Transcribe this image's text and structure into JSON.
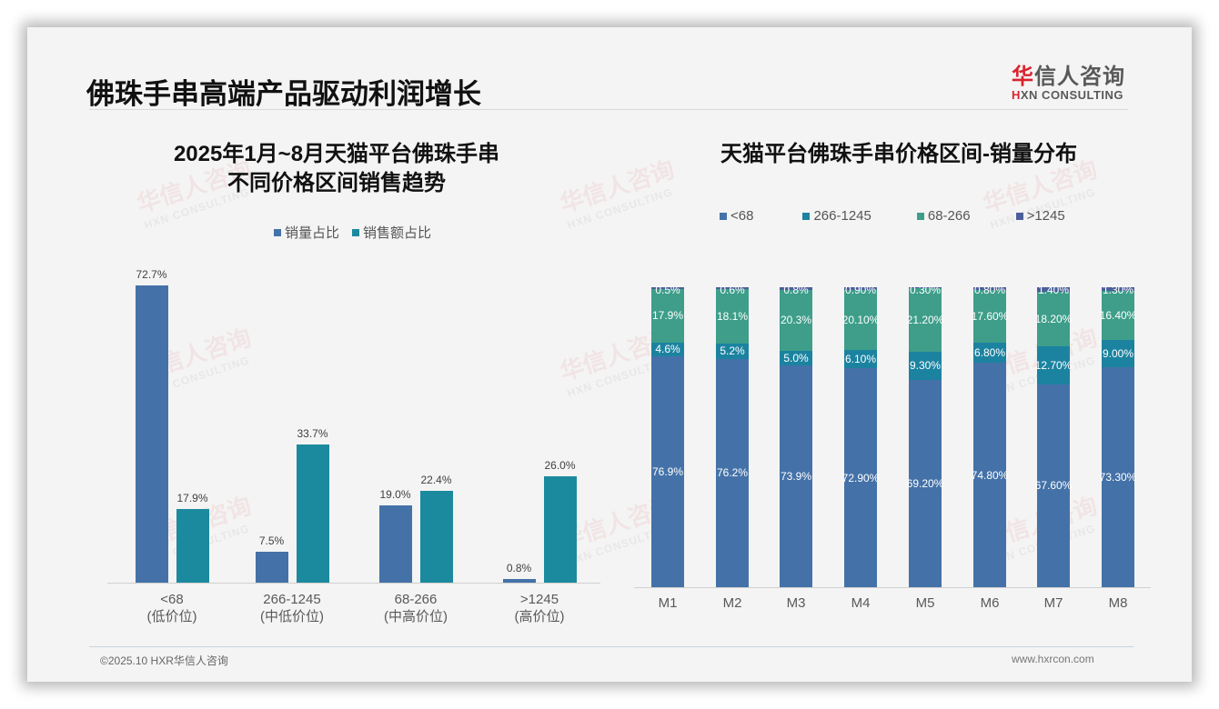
{
  "page": {
    "title": "佛珠手串高端产品驱动利润增长",
    "logo_cn_red": "华",
    "logo_cn_rest": "信人咨询",
    "logo_en_red": "H",
    "logo_en_rest": "XN CONSULTING",
    "watermark_cn": "华信人咨询",
    "watermark_en": "HXN CONSULTING"
  },
  "footer": {
    "copyright": "©2025.10 HXR华信人咨询",
    "website": "www.hxrcon.com"
  },
  "colors": {
    "sales_volume": "#4472a8",
    "sales_amount": "#1b8a9e",
    "lt68": "#4472a8",
    "r266_1245": "#1b83a0",
    "r68_266": "#3e9e8a",
    "gt1245": "#4a5f9a"
  },
  "chart_data": [
    {
      "type": "bar",
      "title_line1": "2025年1月~8月天猫平台佛珠手串",
      "title_line2": "不同价格区间销售趋势",
      "xlabel": "",
      "ylabel": "",
      "legend_position": "top",
      "grid": false,
      "categories": [
        "<68",
        "266-1245",
        "68-266",
        ">1245"
      ],
      "category_sublabels": [
        "(低价位)",
        "(中低价位)",
        "(中高价位)",
        "(高价位)"
      ],
      "series": [
        {
          "name": "销量占比",
          "values": [
            72.7,
            7.5,
            19.0,
            0.8
          ],
          "labels": [
            "72.7%",
            "7.5%",
            "19.0%",
            "0.8%"
          ]
        },
        {
          "name": "销售额占比",
          "values": [
            17.9,
            33.7,
            22.4,
            26.0
          ],
          "labels": [
            "17.9%",
            "33.7%",
            "22.4%",
            "26.0%"
          ]
        }
      ],
      "ylim": [
        0,
        75
      ]
    },
    {
      "type": "bar",
      "stacked": true,
      "title": "天猫平台佛珠手串价格区间-销量分布",
      "legend_position": "top",
      "grid": false,
      "categories": [
        "M1",
        "M2",
        "M3",
        "M4",
        "M5",
        "M6",
        "M7",
        "M8"
      ],
      "series": [
        {
          "name": "<68",
          "values": [
            76.9,
            76.2,
            73.9,
            72.9,
            69.2,
            74.8,
            67.6,
            73.3
          ],
          "labels": [
            "76.9%",
            "76.2%",
            "73.9%",
            "72.90%",
            "69.20%",
            "74.80%",
            "67.60%",
            "73.30%"
          ]
        },
        {
          "name": "266-1245",
          "values": [
            4.6,
            5.2,
            5.0,
            6.1,
            9.3,
            6.8,
            12.7,
            9.0
          ],
          "labels": [
            "4.6%",
            "5.2%",
            "5.0%",
            "6.10%",
            "9.30%",
            "6.80%",
            "12.70%",
            "9.00%"
          ]
        },
        {
          "name": "68-266",
          "values": [
            17.9,
            18.1,
            20.3,
            20.1,
            21.2,
            17.6,
            18.2,
            16.4
          ],
          "labels": [
            "17.9%",
            "18.1%",
            "20.3%",
            "20.10%",
            "21.20%",
            "17.60%",
            "18.20%",
            "16.40%"
          ]
        },
        {
          "name": ">1245",
          "values": [
            0.5,
            0.6,
            0.8,
            0.9,
            0.3,
            0.8,
            1.4,
            1.3
          ],
          "labels": [
            "0.5%",
            "0.6%",
            "0.8%",
            "0.90%",
            "0.30%",
            "0.80%",
            "1.40%",
            "1.30%"
          ]
        }
      ],
      "ylim": [
        0,
        100
      ]
    }
  ]
}
